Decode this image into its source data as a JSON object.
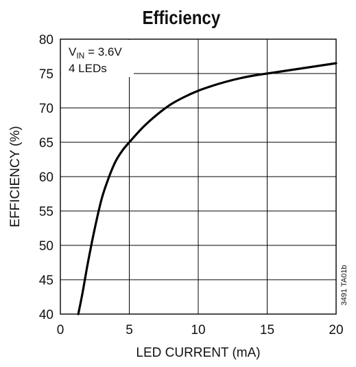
{
  "chart_data": {
    "type": "line",
    "title": "Efficiency",
    "xlabel": "LED CURRENT (mA)",
    "ylabel": "EFFICIENCY (%)",
    "xlim": [
      0,
      20
    ],
    "ylim": [
      40,
      80
    ],
    "xticks": [
      0,
      5,
      10,
      15,
      20
    ],
    "yticks": [
      40,
      45,
      50,
      55,
      60,
      65,
      70,
      75,
      80
    ],
    "grid": true,
    "annotation_lines": [
      {
        "main": "V",
        "sub": "IN",
        "rest": " = 3.6V"
      },
      {
        "main": "4 LEDs"
      }
    ],
    "figure_code": "3491 TA01b",
    "series": [
      {
        "x": [
          1.3,
          1.6,
          2.0,
          2.5,
          3.0,
          3.5,
          4.0,
          4.5,
          5.0,
          6.0,
          7.0,
          8.0,
          9.0,
          10.0,
          11.0,
          12.0,
          13.0,
          14.0,
          15.0,
          16.0,
          17.0,
          18.0,
          19.0,
          20.0
        ],
        "y": [
          40.0,
          43.0,
          47.5,
          52.5,
          56.8,
          59.8,
          62.2,
          63.8,
          65.0,
          67.2,
          69.0,
          70.5,
          71.6,
          72.5,
          73.2,
          73.8,
          74.3,
          74.7,
          75.0,
          75.3,
          75.6,
          75.9,
          76.2,
          76.5
        ]
      }
    ]
  }
}
